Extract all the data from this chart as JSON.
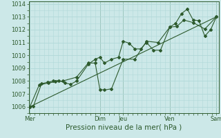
{
  "xlabel": "Pression niveau de la mer( hPa )",
  "bg_color": "#cce8e8",
  "grid_color": "#b0d8d8",
  "line_color": "#2d5a2d",
  "ylim": [
    1005.5,
    1014.2
  ],
  "yticks": [
    1006,
    1007,
    1008,
    1009,
    1010,
    1011,
    1012,
    1013,
    1014
  ],
  "day_labels": [
    "Mer",
    "Dim",
    "Jeu",
    "Ven",
    "Sam"
  ],
  "day_positions": [
    0,
    3.0,
    4.0,
    6.0,
    8.0
  ],
  "series1_x": [
    0,
    0.15,
    0.5,
    0.75,
    1.0,
    1.25,
    1.5,
    1.75,
    2.0,
    2.5,
    2.8,
    3.0,
    3.2,
    3.5,
    3.8,
    4.0,
    4.25,
    4.5,
    4.75,
    5.0,
    5.3,
    5.6,
    6.0,
    6.25,
    6.5,
    6.75,
    7.0,
    7.25,
    7.5,
    7.75,
    8.0
  ],
  "series1_y": [
    1006.0,
    1006.05,
    1007.8,
    1007.9,
    1008.0,
    1008.05,
    1007.85,
    1007.75,
    1008.0,
    1009.3,
    1009.7,
    1009.85,
    1009.4,
    1009.7,
    1009.85,
    1011.1,
    1010.95,
    1010.5,
    1010.5,
    1011.0,
    1010.4,
    1010.4,
    1012.2,
    1012.5,
    1013.25,
    1013.6,
    1012.75,
    1012.7,
    1011.5,
    1012.0,
    1013.0
  ],
  "series2_x": [
    0,
    0.4,
    0.8,
    1.1,
    1.4,
    2.0,
    2.5,
    2.8,
    3.0,
    3.2,
    3.5,
    4.0,
    4.5,
    5.0,
    5.5,
    6.0,
    6.3,
    6.6,
    7.0,
    7.5,
    8.0
  ],
  "series2_y": [
    1006.0,
    1007.7,
    1007.85,
    1007.95,
    1008.0,
    1008.3,
    1009.4,
    1009.4,
    1007.35,
    1007.3,
    1007.4,
    1009.7,
    1009.7,
    1011.1,
    1011.0,
    1012.2,
    1012.25,
    1012.75,
    1012.55,
    1012.05,
    1013.0
  ],
  "trend_x": [
    0,
    8.0
  ],
  "trend_y": [
    1006.0,
    1013.0
  ],
  "xlim": [
    -0.05,
    8.1
  ],
  "xtick_fontsize": 6,
  "ytick_fontsize": 6,
  "xlabel_fontsize": 7.5,
  "marker_size": 2.0,
  "linewidth": 0.8
}
